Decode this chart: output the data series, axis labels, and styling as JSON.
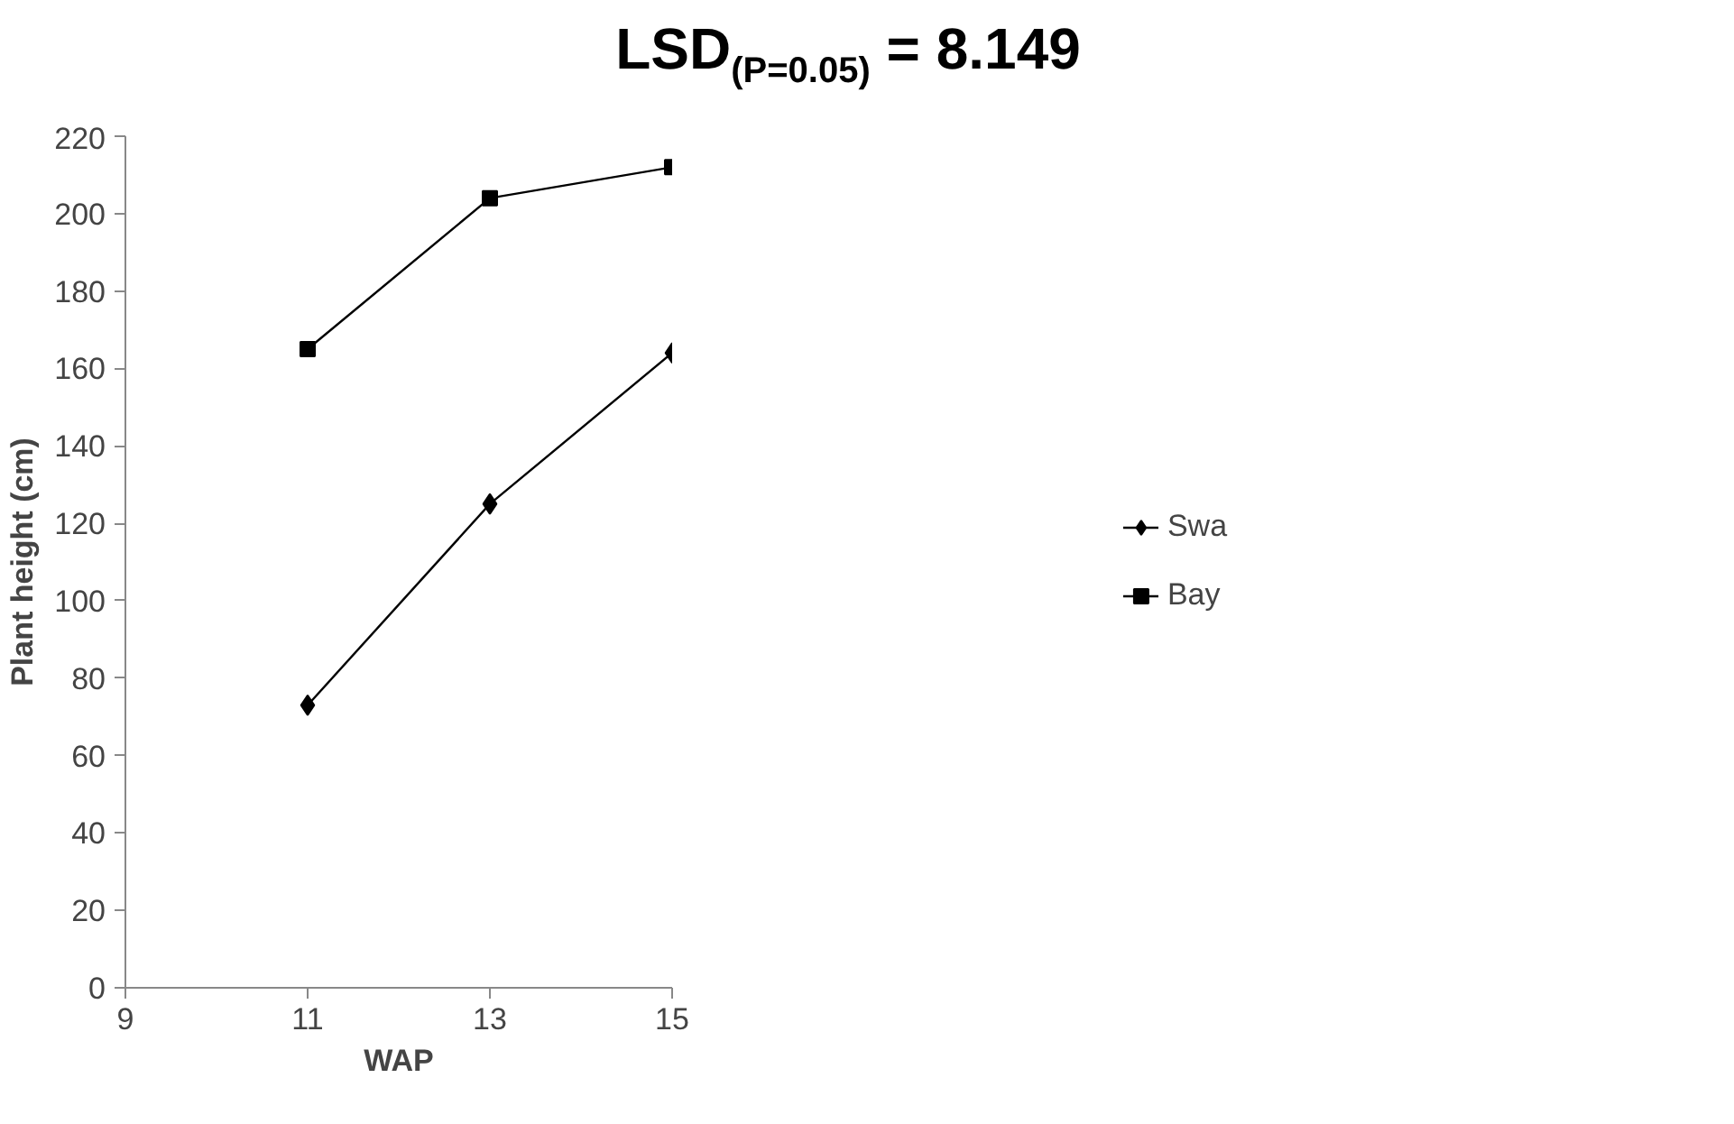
{
  "chart_data": {
    "type": "line",
    "title": "LSD$_{(P=0.05)}$ = 8.149",
    "xlabel": "WAP",
    "ylabel": "Plant height (cm)",
    "x": [
      11,
      13,
      15
    ],
    "series": [
      {
        "name": "Swa",
        "color": "#000000",
        "values": [
          73,
          125,
          164
        ],
        "marker": "diamond"
      },
      {
        "name": "Bay",
        "color": "#000000",
        "values": [
          165,
          204,
          212
        ],
        "marker": "square"
      }
    ],
    "xlim": [
      9,
      15
    ],
    "xticks": [
      9,
      11,
      13,
      15
    ],
    "ylim": [
      0,
      220
    ],
    "yticks": [
      0,
      20,
      40,
      60,
      80,
      100,
      120,
      140,
      160,
      180,
      200,
      220
    ],
    "grid": false,
    "legend": "right",
    "line_style": "solid"
  }
}
